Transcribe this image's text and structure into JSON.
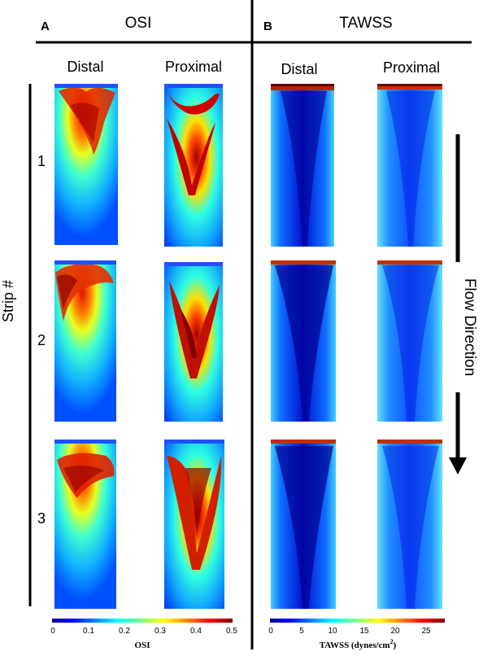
{
  "panels": {
    "a": {
      "letter": "A",
      "title": "OSI",
      "col_left": "Distal",
      "col_right": "Proximal"
    },
    "b": {
      "letter": "B",
      "title": "TAWSS",
      "col_left": "Distal",
      "col_right": "Proximal"
    }
  },
  "strip_axis_label": "Strip #",
  "strip_numbers": [
    "1",
    "2",
    "3"
  ],
  "flow_label": "Flow Direction",
  "colorbars": {
    "osi": {
      "label": "OSI",
      "ticks": [
        "0",
        "0.1",
        "0.2",
        "0.3",
        "0.4",
        "0.5"
      ],
      "range": [
        0,
        0.5
      ]
    },
    "tawss": {
      "label": "TAWSS (dynes/cm",
      "label_sup": "2",
      "label_close": ")",
      "ticks": [
        "0",
        "5",
        "10",
        "15",
        "20",
        "25"
      ],
      "range": [
        0,
        28
      ]
    }
  },
  "colormap": [
    "#00008f",
    "#0000ff",
    "#0080ff",
    "#00ffff",
    "#80ff80",
    "#ffff00",
    "#ff8000",
    "#ff0000",
    "#800000"
  ]
}
